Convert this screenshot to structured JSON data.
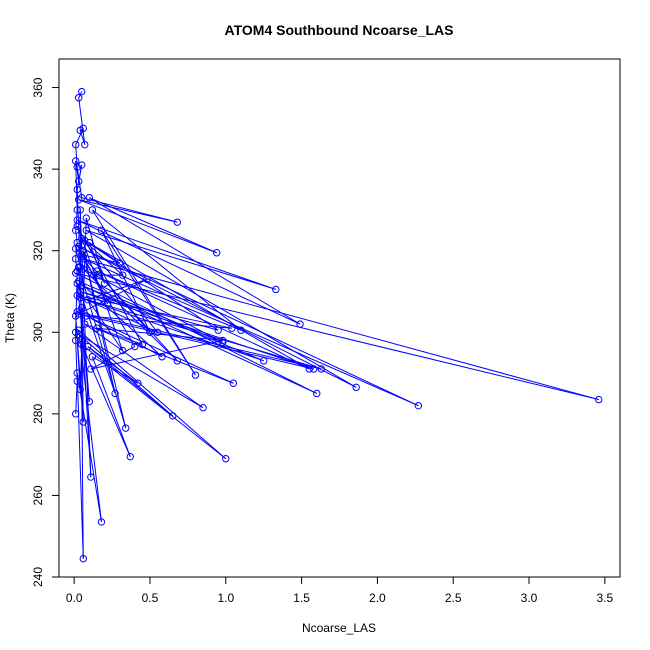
{
  "chart_data": {
    "type": "line",
    "title": "ATOM4 Southbound Ncoarse_LAS",
    "xlabel": "Ncoarse_LAS",
    "ylabel": "Theta (K)",
    "xlim": [
      -0.1,
      3.6
    ],
    "ylim": [
      240,
      367
    ],
    "xticks": [
      0,
      0.5,
      1,
      1.5,
      2,
      2.5,
      3,
      3.5
    ],
    "xtick_labels": [
      "0.0",
      "0.5",
      "1.0",
      "1.5",
      "2.0",
      "2.5",
      "3.0",
      "3.5"
    ],
    "yticks": [
      240,
      260,
      280,
      300,
      320,
      340,
      360
    ],
    "ytick_labels": [
      "240",
      "260",
      "280",
      "300",
      "320",
      "340",
      "360"
    ],
    "grid": false,
    "marker": "open-circle",
    "series": [
      {
        "color": "#0000ff",
        "points": [
          [
            0.05,
            359.0
          ],
          [
            0.03,
            357.5
          ],
          [
            0.07,
            346.0
          ],
          [
            0.04,
            349.5
          ],
          [
            0.06,
            350.0
          ],
          [
            0.01,
            346.0
          ],
          [
            0.02,
            340.5
          ],
          [
            0.05,
            333.0
          ],
          [
            0.68,
            327.0
          ],
          [
            0.03,
            332.5
          ],
          [
            0.94,
            319.5
          ],
          [
            0.1,
            333.0
          ],
          [
            1.49,
            302.0
          ],
          [
            0.02,
            327.5
          ],
          [
            1.33,
            310.5
          ],
          [
            0.08,
            325.0
          ],
          [
            1.86,
            286.5
          ],
          [
            0.03,
            321.0
          ],
          [
            2.27,
            282.0
          ],
          [
            0.06,
            318.0
          ],
          [
            3.46,
            283.5
          ],
          [
            0.01,
            314.5
          ],
          [
            1.6,
            285.0
          ],
          [
            0.05,
            311.5
          ],
          [
            1.25,
            293.0
          ],
          [
            0.04,
            308.5
          ],
          [
            1.63,
            291.0
          ],
          [
            0.02,
            305.0
          ],
          [
            1.05,
            287.5
          ],
          [
            0.07,
            302.0
          ],
          [
            0.85,
            281.5
          ],
          [
            0.03,
            299.5
          ],
          [
            0.65,
            279.5
          ],
          [
            0.09,
            296.5
          ],
          [
            0.42,
            287.5
          ],
          [
            0.12,
            294.0
          ],
          [
            0.37,
            269.5
          ],
          [
            0.05,
            297.0
          ],
          [
            1.0,
            269.0
          ],
          [
            0.03,
            300.5
          ],
          [
            0.18,
            253.5
          ],
          [
            0.02,
            290.0
          ],
          [
            0.06,
            244.5
          ],
          [
            0.04,
            330.0
          ],
          [
            0.11,
            264.5
          ],
          [
            0.03,
            316.0
          ],
          [
            0.34,
            276.5
          ],
          [
            0.06,
            320.0
          ],
          [
            0.27,
            285.0
          ],
          [
            0.02,
            312.0
          ],
          [
            0.1,
            283.0
          ],
          [
            0.05,
            306.0
          ],
          [
            0.06,
            278.0
          ],
          [
            0.01,
            304.0
          ],
          [
            0.04,
            286.0
          ],
          [
            0.08,
            328.0
          ],
          [
            0.2,
            312.0
          ],
          [
            0.1,
            322.0
          ],
          [
            0.3,
            317.0
          ],
          [
            0.05,
            319.0
          ],
          [
            0.5,
            300.0
          ],
          [
            0.18,
            325.0
          ],
          [
            0.8,
            289.5
          ],
          [
            0.12,
            330.0
          ],
          [
            1.1,
            300.5
          ],
          [
            0.15,
            315.0
          ],
          [
            1.55,
            291.0
          ],
          [
            0.07,
            322.5
          ],
          [
            0.95,
            300.5
          ],
          [
            0.04,
            310.0
          ],
          [
            1.58,
            291.0
          ],
          [
            0.03,
            304.5
          ],
          [
            0.48,
            313.0
          ],
          [
            0.09,
            308.0
          ],
          [
            0.32,
            295.5
          ],
          [
            0.02,
            326.0
          ],
          [
            0.45,
            297.0
          ],
          [
            0.15,
            301.0
          ],
          [
            0.98,
            298.0
          ],
          [
            0.11,
            291.0
          ],
          [
            0.4,
            296.5
          ],
          [
            0.06,
            318.5
          ],
          [
            0.22,
            307.0
          ],
          [
            0.13,
            314.0
          ],
          [
            0.32,
            314.0
          ],
          [
            0.05,
            323.0
          ],
          [
            0.55,
            300.0
          ],
          [
            0.02,
            309.0
          ],
          [
            1.04,
            301.0
          ],
          [
            0.08,
            304.0
          ],
          [
            0.58,
            294.0
          ],
          [
            0.03,
            312.5
          ],
          [
            0.98,
            297.5
          ],
          [
            0.06,
            315.5
          ],
          [
            0.68,
            293.0
          ],
          [
            0.01,
            320.5
          ],
          [
            0.04,
            316.0
          ],
          [
            0.02,
            335.0
          ],
          [
            0.05,
            341.0
          ],
          [
            0.03,
            337.0
          ],
          [
            0.01,
            342.0
          ],
          [
            0.02,
            330.0
          ],
          [
            0.01,
            325.0
          ],
          [
            0.02,
            322.0
          ],
          [
            0.01,
            318.0
          ],
          [
            0.02,
            315.0
          ],
          [
            0.01,
            300.0
          ],
          [
            0.01,
            298.0
          ],
          [
            0.02,
            288.0
          ],
          [
            0.01,
            280.0
          ]
        ]
      }
    ]
  }
}
